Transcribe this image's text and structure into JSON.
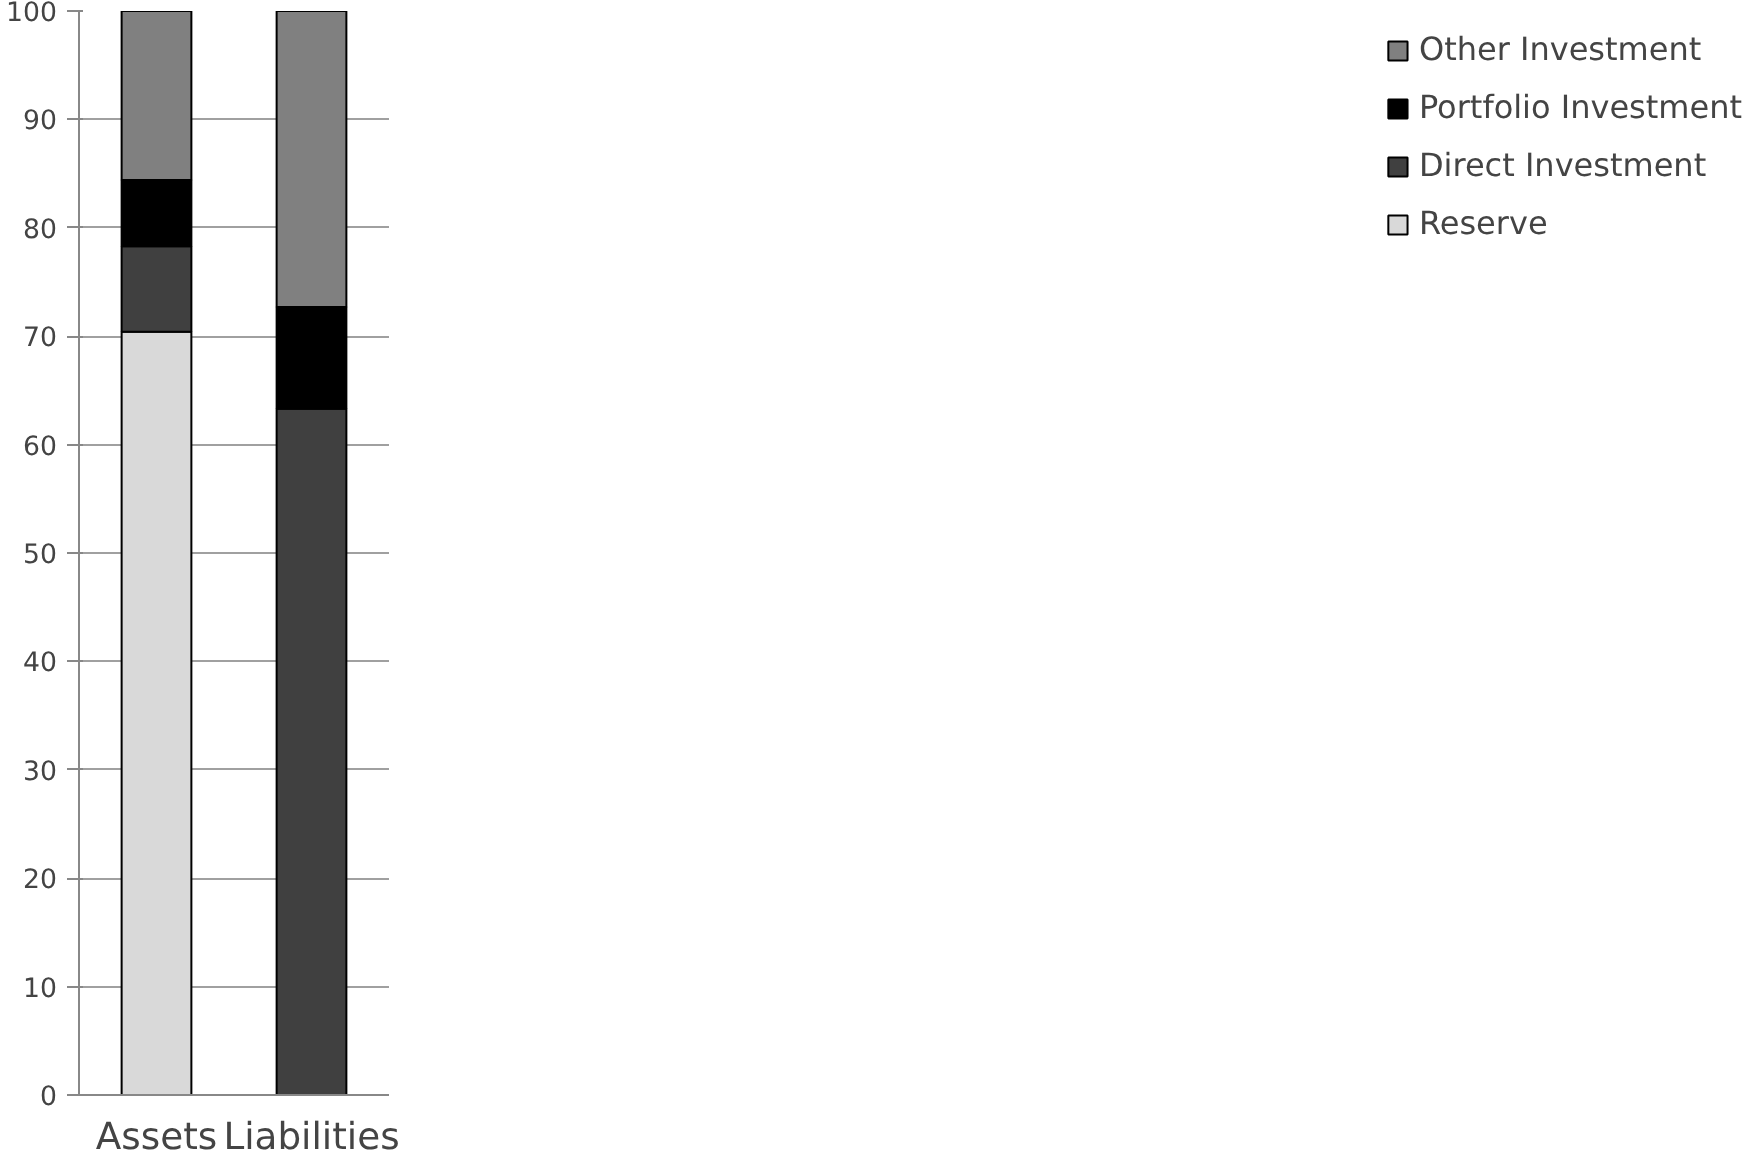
{
  "chart_data": {
    "type": "bar",
    "stacked": true,
    "categories": [
      "Assets",
      "Liabilities"
    ],
    "series": [
      {
        "name": "Reserve",
        "color": "#d9d9d9",
        "values": [
          70.4,
          0
        ]
      },
      {
        "name": "Direct Investment",
        "color": "#404040",
        "values": [
          7.9,
          63.3
        ]
      },
      {
        "name": "Portfolio Investment",
        "color": "#000000",
        "values": [
          6.1,
          9.4
        ]
      },
      {
        "name": "Other Investment",
        "color": "#808080",
        "values": [
          15.6,
          27.3
        ]
      }
    ],
    "ylim": [
      0,
      100
    ],
    "yticks": [
      0,
      10,
      20,
      30,
      40,
      50,
      60,
      70,
      80,
      90,
      100
    ],
    "grid": "y",
    "legend": "right"
  }
}
